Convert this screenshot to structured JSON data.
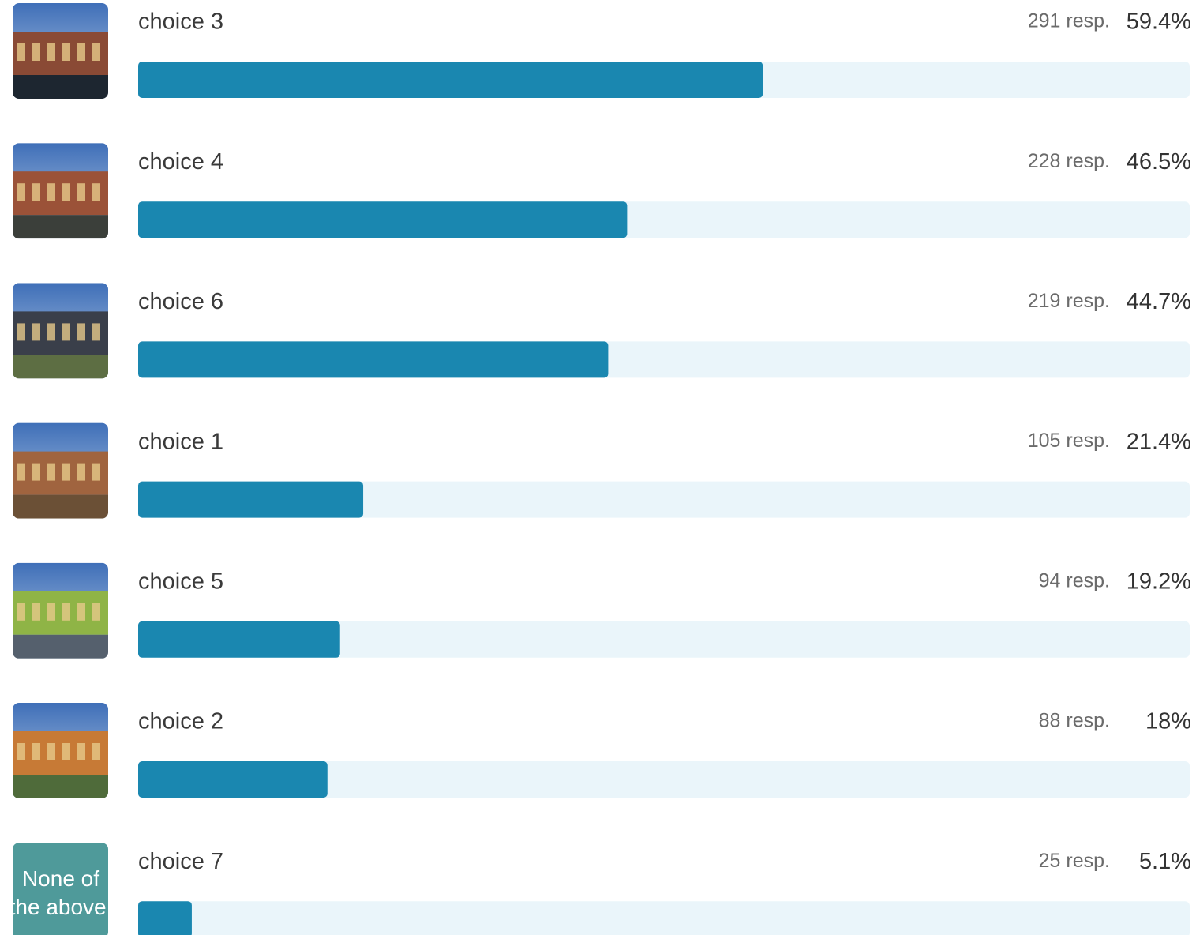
{
  "chart_data": {
    "type": "bar",
    "categories": [
      "choice 3",
      "choice 4",
      "choice 6",
      "choice 1",
      "choice 5",
      "choice 2",
      "choice 7"
    ],
    "values": [
      59.4,
      46.5,
      44.7,
      21.4,
      19.2,
      18,
      5.1
    ],
    "value_labels": [
      "59.4%",
      "46.5%",
      "44.7%",
      "21.4%",
      "19.2%",
      "18%",
      "5.1%"
    ],
    "responses": [
      "291 resp.",
      "228 resp.",
      "219 resp.",
      "105 resp.",
      "94 resp.",
      "88 resp.",
      "25 resp."
    ],
    "image_text": "None of the above.",
    "color": "#1a87b0",
    "xlim": [
      0,
      100
    ]
  }
}
